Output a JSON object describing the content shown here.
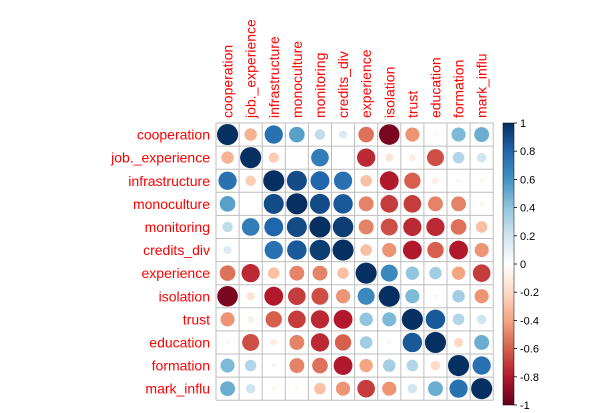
{
  "chart_data": {
    "type": "heatmap",
    "variables": [
      "cooperation",
      "job._experience",
      "infrastructure",
      "monoculture",
      "monitoring",
      "credits_div",
      "experience",
      "isolation",
      "trust",
      "education",
      "formation",
      "mark_influ"
    ],
    "matrix": [
      [
        1.0,
        -0.35,
        0.75,
        0.55,
        0.25,
        0.15,
        -0.55,
        -0.95,
        -0.45,
        -0.05,
        0.45,
        0.5
      ],
      [
        -0.35,
        1.0,
        -0.25,
        0.0,
        0.7,
        0.0,
        -0.75,
        -0.15,
        -0.1,
        -0.65,
        0.3,
        0.2
      ],
      [
        0.75,
        -0.25,
        1.0,
        0.9,
        0.8,
        0.75,
        -0.3,
        -0.8,
        -0.6,
        -0.1,
        0.05,
        -0.05
      ],
      [
        0.55,
        0.0,
        0.9,
        1.0,
        0.9,
        0.85,
        -0.5,
        -0.7,
        -0.7,
        -0.5,
        -0.5,
        -0.05
      ],
      [
        0.25,
        0.7,
        0.8,
        0.9,
        1.0,
        0.95,
        -0.5,
        -0.65,
        -0.75,
        -0.75,
        -0.55,
        -0.3
      ],
      [
        0.15,
        0.0,
        0.75,
        0.85,
        0.95,
        1.0,
        -0.3,
        -0.45,
        -0.8,
        -0.6,
        -0.8,
        -0.45
      ],
      [
        -0.55,
        -0.75,
        -0.3,
        -0.5,
        -0.5,
        -0.3,
        1.0,
        0.65,
        0.4,
        0.35,
        -0.4,
        -0.7
      ],
      [
        -0.95,
        -0.15,
        -0.8,
        -0.7,
        -0.65,
        -0.45,
        0.65,
        1.0,
        0.45,
        0.05,
        0.35,
        -0.45
      ],
      [
        -0.45,
        -0.1,
        -0.6,
        -0.7,
        -0.75,
        -0.8,
        0.4,
        0.45,
        1.0,
        0.85,
        0.3,
        0.2
      ],
      [
        -0.05,
        -0.65,
        -0.1,
        -0.5,
        -0.75,
        -0.6,
        0.35,
        0.05,
        0.85,
        1.0,
        -0.2,
        0.5
      ],
      [
        0.45,
        0.3,
        0.05,
        -0.5,
        -0.55,
        -0.8,
        -0.4,
        0.35,
        0.3,
        -0.2,
        1.0,
        0.75
      ],
      [
        0.5,
        0.2,
        -0.05,
        -0.05,
        -0.3,
        -0.45,
        -0.7,
        -0.45,
        0.2,
        0.5,
        0.75,
        1.0
      ]
    ],
    "colorbar_ticks": [
      "1",
      "0.8",
      "0.6",
      "0.4",
      "0.2",
      "0",
      "-0.2",
      "-0.4",
      "-0.6",
      "-0.8",
      "-1"
    ],
    "value_range": [
      -1,
      1
    ],
    "label_color": "#ff0000",
    "color_scale": [
      "#67001f",
      "#b2182b",
      "#d6604d",
      "#f4a582",
      "#fddbc7",
      "#ffffff",
      "#d1e5f0",
      "#92c5de",
      "#4393c3",
      "#2166ac",
      "#053061"
    ],
    "grid": true
  }
}
